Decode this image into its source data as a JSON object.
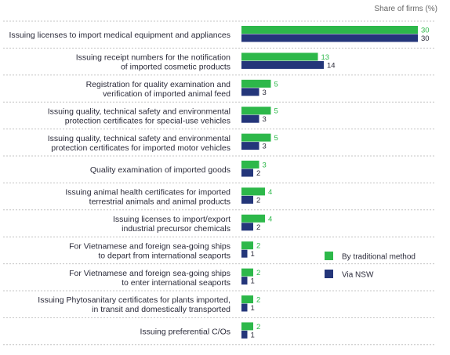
{
  "chart_data": {
    "type": "bar",
    "orientation": "horizontal",
    "unit_label": "Share of firms (%)",
    "categories": [
      [
        "Issuing licenses to import medical equipment and appliances"
      ],
      [
        "Issuing receipt numbers for the notification",
        "of imported cosmetic products"
      ],
      [
        "Registration for quality examination and",
        "verification of imported animal feed"
      ],
      [
        "Issuing quality, technical safety and environmental",
        "protection certificates for special-use vehicles"
      ],
      [
        "Issuing quality, technical safety and environmental",
        "protection certificates for imported motor vehicles"
      ],
      [
        "Quality examination of imported goods"
      ],
      [
        "Issuing animal health certificates for imported",
        "terrestrial animals and animal products"
      ],
      [
        "Issuing licenses to import/export",
        "industrial precursor chemicals"
      ],
      [
        "For Vietnamese and foreign sea-going ships",
        "to depart from international seaports"
      ],
      [
        "For Vietnamese and foreign sea-going ships",
        "to enter international seaports"
      ],
      [
        "Issuing Phytosanitary certificates for plants imported,",
        "in transit and domestically transported"
      ],
      [
        "Issuing preferential C/Os"
      ]
    ],
    "series": [
      {
        "name": "By traditional method",
        "color": "#2db84a",
        "values": [
          30,
          13,
          5,
          5,
          5,
          3,
          4,
          4,
          2,
          2,
          2,
          2
        ]
      },
      {
        "name": "Via NSW",
        "color": "#24367a",
        "values": [
          30,
          14,
          3,
          3,
          3,
          2,
          2,
          2,
          1,
          1,
          1,
          1
        ]
      }
    ],
    "xlim": [
      0,
      30
    ],
    "legend_position": "bottom-right",
    "grid": false
  }
}
